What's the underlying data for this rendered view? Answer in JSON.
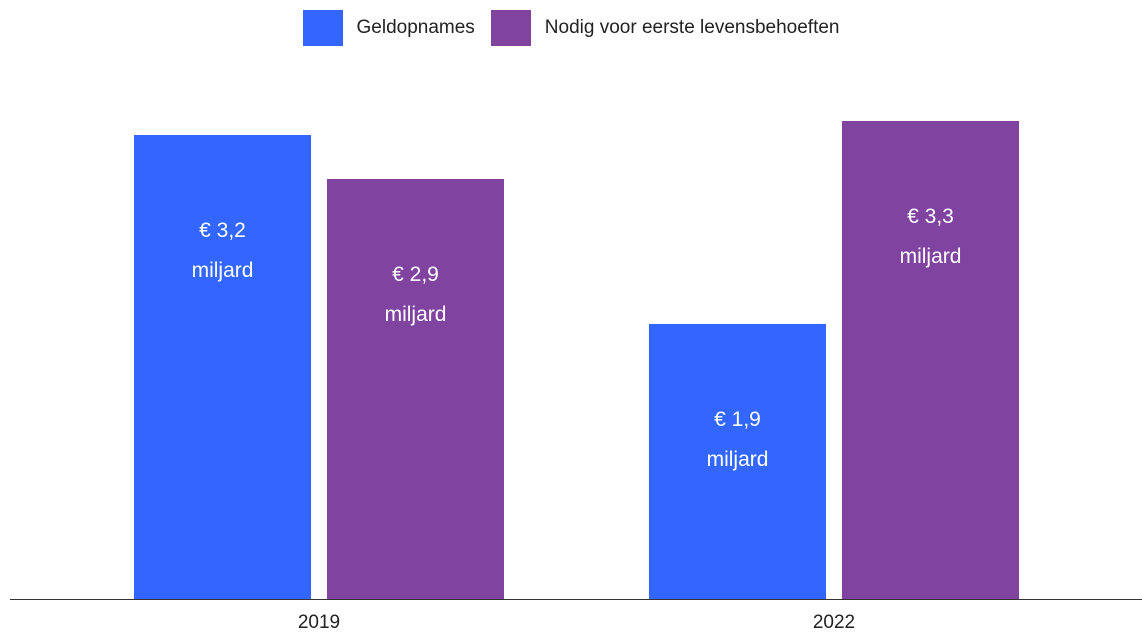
{
  "chart_data": {
    "type": "bar",
    "categories": [
      "2019",
      "2022"
    ],
    "series": [
      {
        "name": "Geldopnames",
        "color": "#3366ff",
        "values": [
          3.2,
          1.9
        ],
        "value_labels": [
          "€ 3,2 miljard",
          "€ 1,9 miljard"
        ]
      },
      {
        "name": "Nodig voor eerste levensbehoeften",
        "color": "#8043a0",
        "values": [
          2.9,
          3.3
        ],
        "value_labels": [
          "€ 2,9 miljard",
          "€ 3,3 miljard"
        ]
      }
    ],
    "legend": "top"
  }
}
